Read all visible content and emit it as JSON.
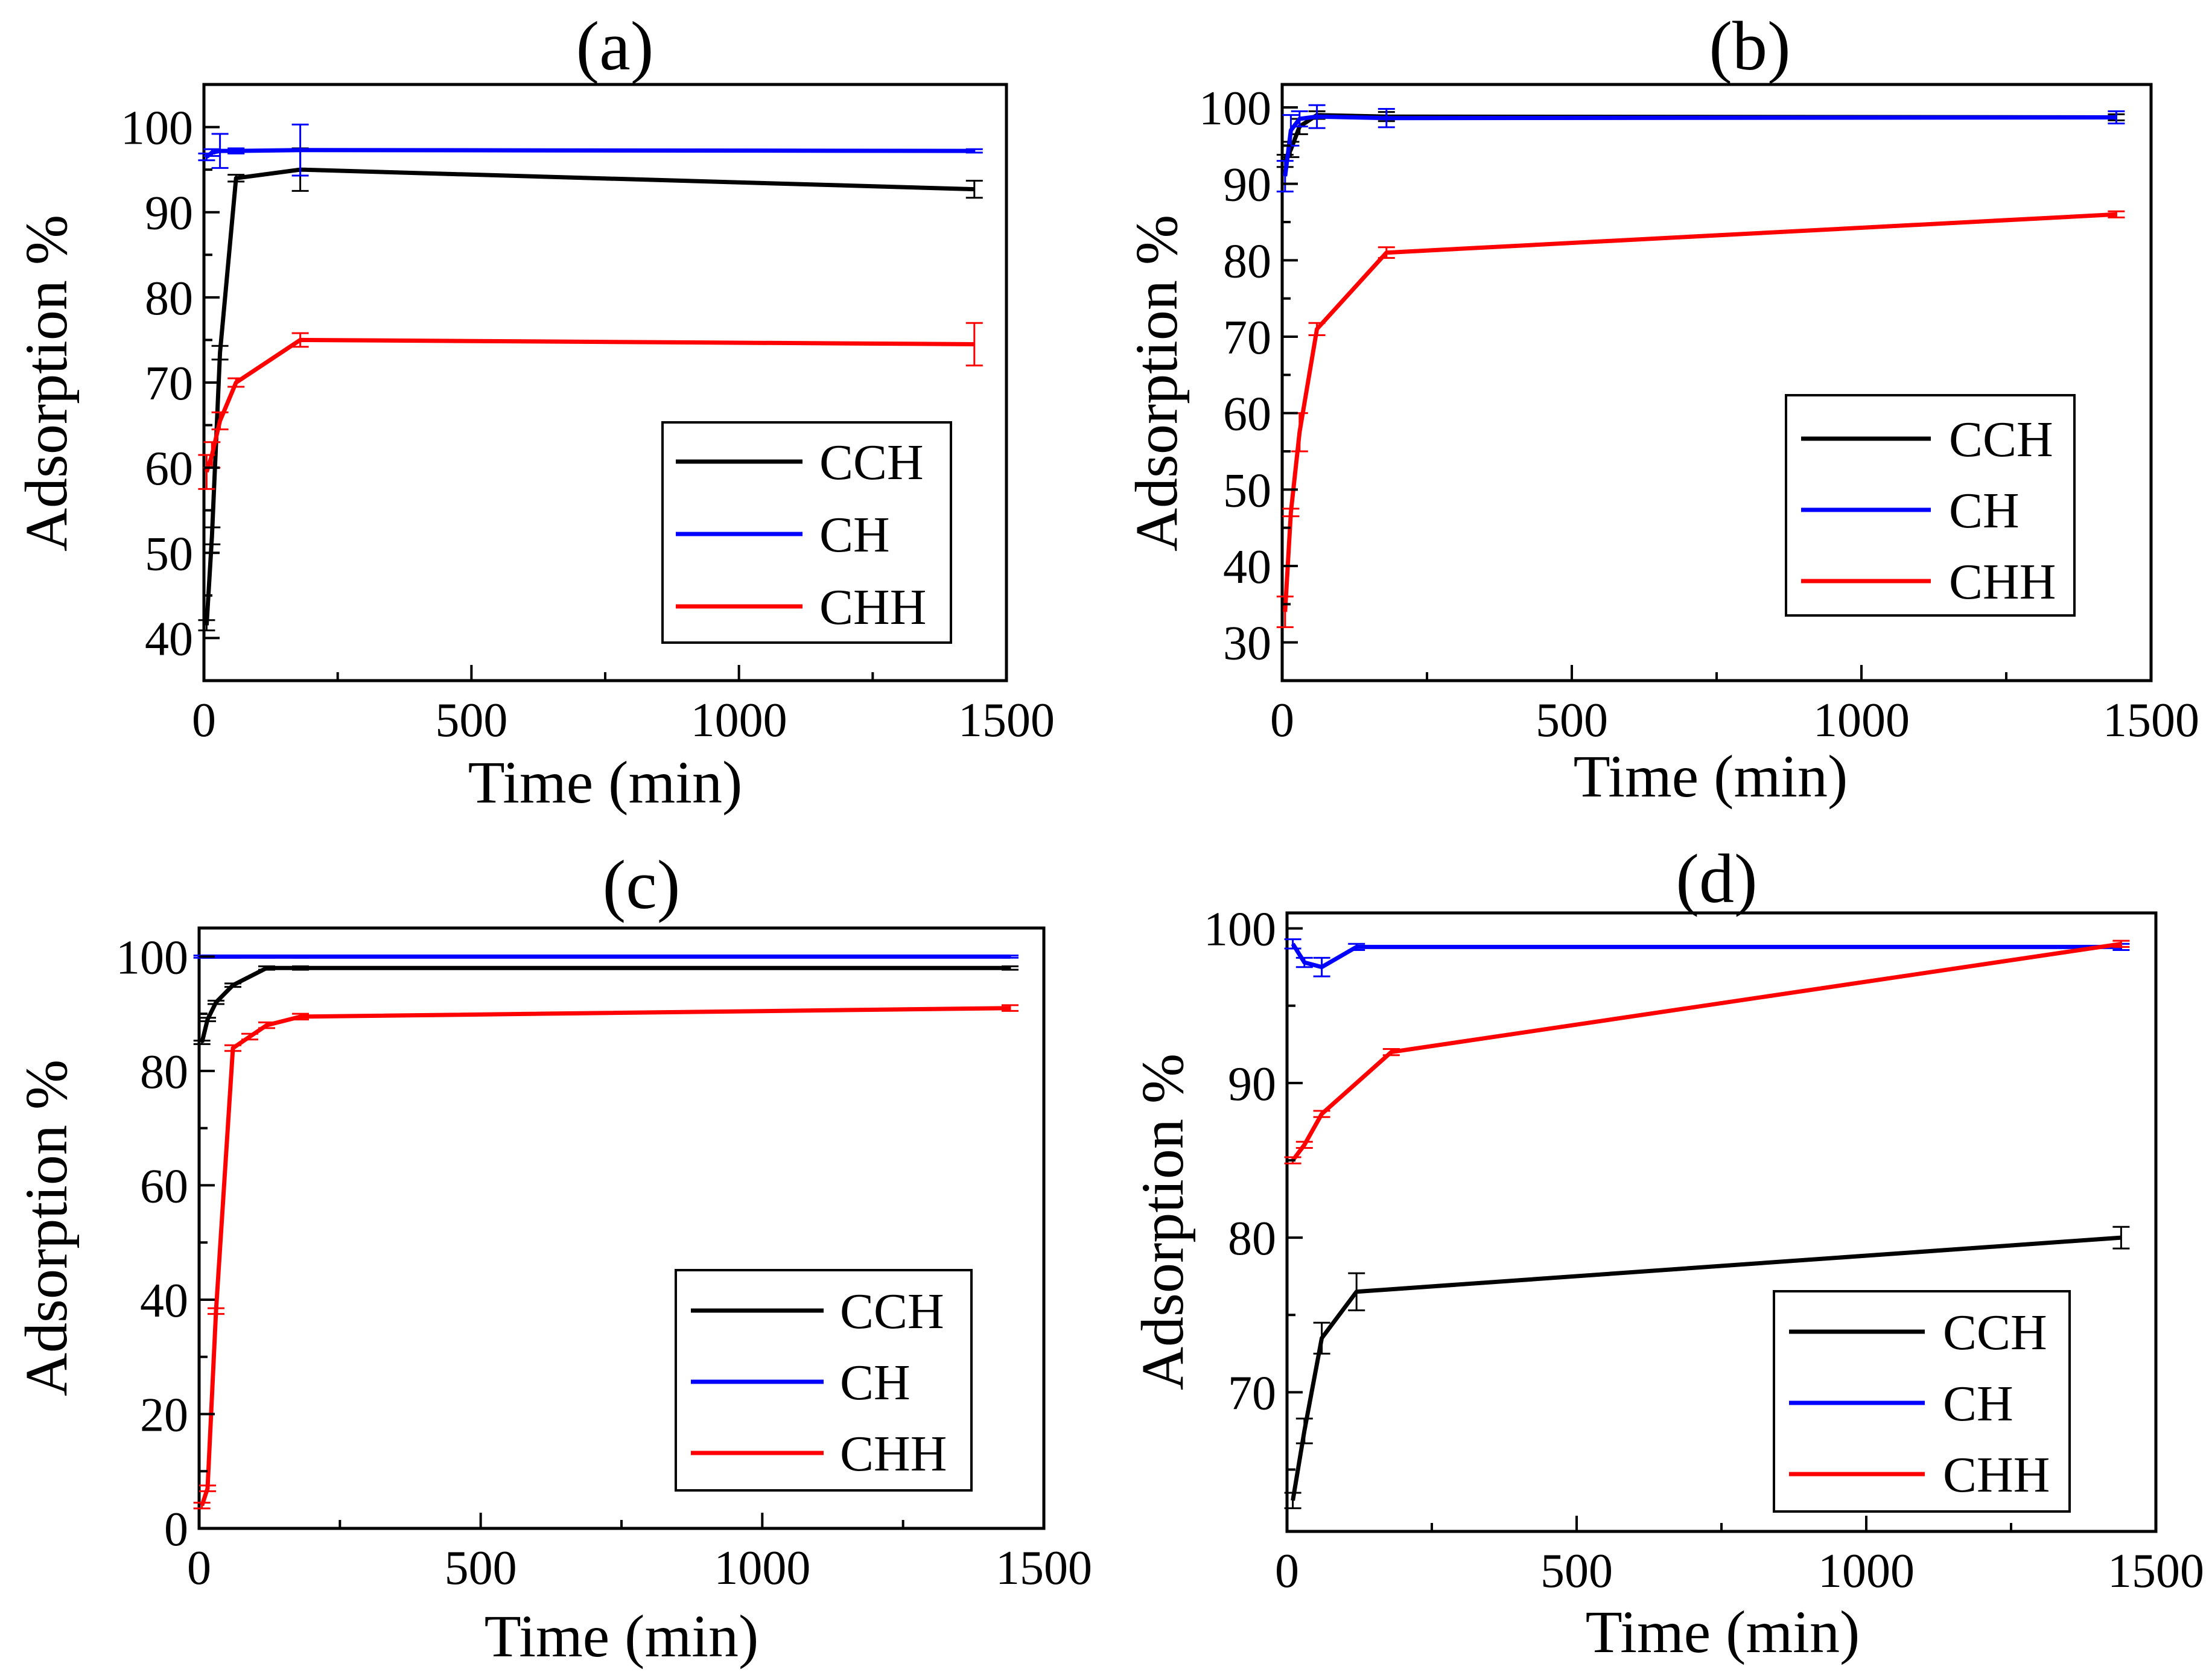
{
  "chart_data": [
    {
      "type": "line",
      "panel": "(a)",
      "xlabel": "Time (min)",
      "ylabel": "Adsorption %",
      "xlim": [
        0,
        1500
      ],
      "ylim": [
        35,
        105
      ],
      "xticks": [
        0,
        500,
        1000,
        1500
      ],
      "yticks": [
        40,
        50,
        60,
        70,
        80,
        90,
        100
      ],
      "legend_position": "bottom-right",
      "series": [
        {
          "name": "CCH",
          "color": "#000000",
          "x": [
            5,
            15,
            30,
            60,
            180,
            1440
          ],
          "y": [
            41.5,
            52,
            73.5,
            94,
            95,
            92.7
          ],
          "err": [
            0.6,
            1,
            0.8,
            0.4,
            2.5,
            1
          ]
        },
        {
          "name": "CH",
          "color": "#0000ff",
          "x": [
            5,
            15,
            30,
            60,
            180,
            1440
          ],
          "y": [
            96.5,
            97,
            97.2,
            97.2,
            97.3,
            97.2
          ],
          "err": [
            0.4,
            0.4,
            2,
            0.3,
            3,
            0.2
          ]
        },
        {
          "name": "CHH",
          "color": "#ff0000",
          "x": [
            5,
            15,
            30,
            60,
            180,
            1440
          ],
          "y": [
            59.5,
            61.5,
            65.5,
            70,
            75,
            74.5
          ],
          "err": [
            2,
            1.5,
            1,
            0.5,
            0.8,
            2.5
          ]
        }
      ]
    },
    {
      "type": "line",
      "panel": "(b)",
      "xlabel": "Time (min)",
      "ylabel": "Adsorption %",
      "xlim": [
        0,
        1500
      ],
      "ylim": [
        25,
        103
      ],
      "xticks": [
        0,
        500,
        1000,
        1500
      ],
      "yticks": [
        30,
        40,
        50,
        60,
        70,
        80,
        90,
        100
      ],
      "legend_position": "middle-right",
      "series": [
        {
          "name": "CCH",
          "color": "#000000",
          "x": [
            5,
            15,
            30,
            60,
            180,
            1440
          ],
          "y": [
            93,
            94.5,
            97.5,
            99,
            98.8,
            98.7
          ],
          "err": [
            0.8,
            1,
            1,
            0.5,
            0.6,
            0.4
          ]
        },
        {
          "name": "CH",
          "color": "#0000ff",
          "x": [
            5,
            15,
            30,
            60,
            180,
            1440
          ],
          "y": [
            91,
            97,
            98.5,
            98.8,
            98.6,
            98.7
          ],
          "err": [
            2,
            2,
            1,
            1.5,
            1.2,
            0.8
          ]
        },
        {
          "name": "CHH",
          "color": "#ff0000",
          "x": [
            5,
            15,
            30,
            60,
            180,
            1440
          ],
          "y": [
            34,
            47,
            57.5,
            71,
            81,
            86
          ],
          "err": [
            2,
            0.5,
            2.5,
            0.8,
            0.7,
            0.4
          ]
        }
      ]
    },
    {
      "type": "line",
      "panel": "(c)",
      "xlabel": "Time (min)",
      "ylabel": "Adsorption %",
      "xlim": [
        0,
        1500
      ],
      "ylim": [
        0,
        105
      ],
      "xticks": [
        0,
        500,
        1000,
        1500
      ],
      "yticks": [
        0,
        20,
        40,
        60,
        80,
        100
      ],
      "legend_position": "bottom-right",
      "series": [
        {
          "name": "CCH",
          "color": "#000000",
          "x": [
            5,
            15,
            30,
            60,
            120,
            180,
            1440
          ],
          "y": [
            85,
            89,
            92,
            95,
            98,
            98,
            98
          ],
          "err": [
            0.3,
            0.3,
            0.3,
            0.3,
            0.3,
            0.3,
            0.3
          ]
        },
        {
          "name": "CH",
          "color": "#0000ff",
          "x": [
            5,
            15,
            30,
            60,
            120,
            180,
            1440
          ],
          "y": [
            100,
            100,
            100,
            100,
            100,
            100,
            100
          ],
          "err": [
            0.2,
            0.2,
            0.2,
            0.2,
            0.2,
            0.2,
            0.2
          ]
        },
        {
          "name": "CHH",
          "color": "#ff0000",
          "x": [
            5,
            15,
            30,
            60,
            90,
            120,
            180,
            1440
          ],
          "y": [
            4,
            7,
            38,
            84,
            86,
            88,
            89.5,
            91
          ],
          "err": [
            0.5,
            0.5,
            0.5,
            0.5,
            0.5,
            0.5,
            0.5,
            0.5
          ]
        }
      ]
    },
    {
      "type": "line",
      "panel": "(d)",
      "xlabel": "Time (min)",
      "ylabel": "Adsorption %",
      "xlim": [
        0,
        1500
      ],
      "ylim": [
        61,
        101
      ],
      "xticks": [
        0,
        500,
        1000,
        1500
      ],
      "yticks": [
        70,
        80,
        90,
        100
      ],
      "legend_position": "bottom-right",
      "series": [
        {
          "name": "CCH",
          "color": "#000000",
          "x": [
            10,
            30,
            60,
            120,
            1440
          ],
          "y": [
            63,
            67.5,
            73.5,
            76.5,
            80
          ],
          "err": [
            0.5,
            0.8,
            1,
            1.2,
            0.7
          ]
        },
        {
          "name": "CH",
          "color": "#0000ff",
          "x": [
            10,
            30,
            60,
            120,
            1440
          ],
          "y": [
            99,
            97.8,
            97.5,
            98.8,
            98.8
          ],
          "err": [
            0.3,
            0.3,
            0.6,
            0.2,
            0.2
          ]
        },
        {
          "name": "CHH",
          "color": "#ff0000",
          "x": [
            10,
            30,
            60,
            180,
            1440
          ],
          "y": [
            85,
            86,
            88,
            92,
            99
          ],
          "err": [
            0.2,
            0.2,
            0.2,
            0.2,
            0.2
          ]
        }
      ]
    }
  ]
}
